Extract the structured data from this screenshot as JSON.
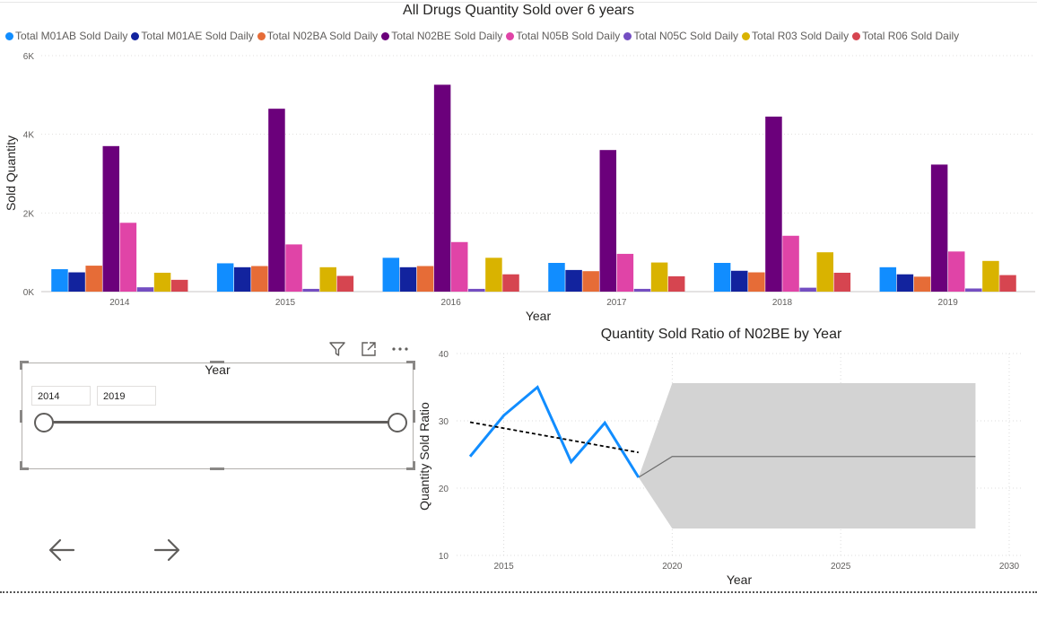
{
  "chart_data": [
    {
      "type": "bar",
      "title": "All Drugs Quantity Sold over 6 years",
      "xlabel": "Year",
      "ylabel": "Sold Quantity",
      "ylim": [
        0,
        6000
      ],
      "yticks": [
        "0K",
        "2K",
        "4K",
        "6K"
      ],
      "grid": true,
      "legend_position": "top-left",
      "categories": [
        "2014",
        "2015",
        "2016",
        "2017",
        "2018",
        "2019"
      ],
      "series": [
        {
          "name": "Total M01AB Sold Daily",
          "color": "#118dff",
          "values": [
            570,
            720,
            860,
            730,
            730,
            620
          ]
        },
        {
          "name": "Total M01AE Sold Daily",
          "color": "#12239e",
          "values": [
            490,
            620,
            620,
            550,
            530,
            440
          ]
        },
        {
          "name": "Total N02BA Sold Daily",
          "color": "#e66c37",
          "values": [
            660,
            650,
            650,
            520,
            490,
            380
          ]
        },
        {
          "name": "Total N02BE Sold Daily",
          "color": "#6b007b",
          "values": [
            3700,
            4650,
            5260,
            3600,
            4450,
            3230
          ]
        },
        {
          "name": "Total N05B Sold Daily",
          "color": "#e044a7",
          "values": [
            1750,
            1200,
            1260,
            960,
            1420,
            1020
          ]
        },
        {
          "name": "Total N05C Sold Daily",
          "color": "#744ec2",
          "values": [
            110,
            70,
            70,
            70,
            100,
            80
          ]
        },
        {
          "name": "Total R03 Sold Daily",
          "color": "#d9b300",
          "values": [
            480,
            620,
            860,
            740,
            1000,
            780
          ]
        },
        {
          "name": "Total R06 Sold Daily",
          "color": "#d64550",
          "values": [
            300,
            400,
            440,
            390,
            480,
            420
          ]
        }
      ]
    },
    {
      "type": "line",
      "title": "Quantity Sold Ratio of N02BE by Year",
      "xlabel": "Year",
      "ylabel": "Quantity Sold Ratio",
      "xlim": [
        2013.6,
        2030.4
      ],
      "ylim": [
        10,
        40
      ],
      "xticks": [
        "2015",
        "2020",
        "2025",
        "2030"
      ],
      "yticks": [
        "10",
        "20",
        "30",
        "40"
      ],
      "grid": true,
      "series": [
        {
          "name": "",
          "color": "#118dff",
          "x": [
            2014,
            2015,
            2016,
            2017,
            2018,
            2019
          ],
          "values": [
            24.7,
            30.8,
            35.0,
            23.9,
            29.7,
            21.6
          ]
        }
      ],
      "trend": {
        "color": "#000000",
        "x": [
          2014,
          2019
        ],
        "values": [
          29.8,
          25.3
        ]
      },
      "forecast": {
        "color": "#6e6e6e",
        "band_color": "#d3d3d3",
        "x": [
          2019,
          2020,
          2029
        ],
        "values": [
          21.6,
          24.7,
          24.7
        ],
        "upper": [
          21.6,
          35.6,
          35.6
        ],
        "lower": [
          21.6,
          14.0,
          14.0
        ]
      }
    }
  ],
  "slicer": {
    "title": "Year",
    "start": "2014",
    "end": "2019"
  },
  "visual_header": {
    "icons": [
      "filter-icon",
      "focus-mode-icon",
      "more-options-icon"
    ]
  },
  "navigation": {
    "back_icon": "arrow-left-icon",
    "forward_icon": "arrow-right-icon"
  }
}
